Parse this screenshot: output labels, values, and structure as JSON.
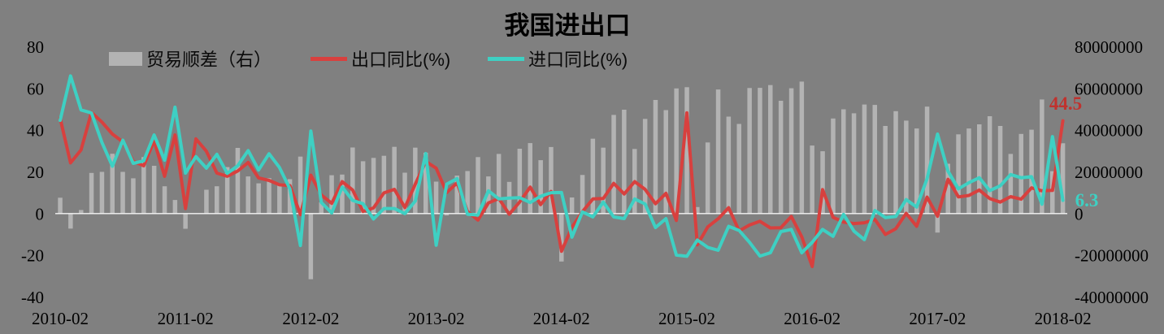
{
  "title": "我国进出口",
  "colors": {
    "background": "#808080",
    "bar": "#b3b3b3",
    "export_line": "#d8403e",
    "import_line": "#3ed0c3",
    "zero_line": "#f5f5f5",
    "text": "#000000"
  },
  "legend": {
    "items": [
      {
        "label": "贸易顺差（右）",
        "type": "bar",
        "color": "#b3b3b3"
      },
      {
        "label": "出口同比(%)",
        "type": "line",
        "color": "#d8403e"
      },
      {
        "label": "进口同比(%)",
        "type": "line",
        "color": "#3ed0c3"
      }
    ]
  },
  "axes": {
    "left_ticks": [
      "80",
      "60",
      "40",
      "20",
      "0",
      "-20",
      "-40"
    ],
    "left_tick_values": [
      80,
      60,
      40,
      20,
      0,
      -20,
      -40
    ],
    "right_ticks": [
      "80000000",
      "60000000",
      "40000000",
      "20000000",
      "0",
      "-20000000",
      "-40000000"
    ],
    "right_tick_values": [
      80000000,
      60000000,
      40000000,
      20000000,
      0,
      -20000000,
      -40000000
    ],
    "x_ticks": [
      "2010-02",
      "2011-02",
      "2012-02",
      "2013-02",
      "2014-02",
      "2015-02",
      "2016-02",
      "2017-02",
      "2018-02"
    ]
  },
  "annotations": {
    "export_last": {
      "text": "44.5",
      "color": "#c0322e"
    },
    "import_last": {
      "text": "6.3",
      "color": "#3ed0c3"
    }
  },
  "chart_data": {
    "type": "combo",
    "title": "我国进出口",
    "grid": false,
    "legend_position": "top",
    "left_ylim": [
      -40,
      80
    ],
    "right_ylim": [
      -40000000,
      80000000
    ],
    "x": [
      "2010-02",
      "2010-03",
      "2010-04",
      "2010-05",
      "2010-06",
      "2010-07",
      "2010-08",
      "2010-09",
      "2010-10",
      "2010-11",
      "2010-12",
      "2011-01",
      "2011-02",
      "2011-03",
      "2011-04",
      "2011-05",
      "2011-06",
      "2011-07",
      "2011-08",
      "2011-09",
      "2011-10",
      "2011-11",
      "2011-12",
      "2012-01",
      "2012-02",
      "2012-03",
      "2012-04",
      "2012-05",
      "2012-06",
      "2012-07",
      "2012-08",
      "2012-09",
      "2012-10",
      "2012-11",
      "2012-12",
      "2013-01",
      "2013-02",
      "2013-03",
      "2013-04",
      "2013-05",
      "2013-06",
      "2013-07",
      "2013-08",
      "2013-09",
      "2013-10",
      "2013-11",
      "2013-12",
      "2014-01",
      "2014-02",
      "2014-03",
      "2014-04",
      "2014-05",
      "2014-06",
      "2014-07",
      "2014-08",
      "2014-09",
      "2014-10",
      "2014-11",
      "2014-12",
      "2015-01",
      "2015-02",
      "2015-03",
      "2015-04",
      "2015-05",
      "2015-06",
      "2015-07",
      "2015-08",
      "2015-09",
      "2015-10",
      "2015-11",
      "2015-12",
      "2016-01",
      "2016-02",
      "2016-03",
      "2016-04",
      "2016-05",
      "2016-06",
      "2016-07",
      "2016-08",
      "2016-09",
      "2016-10",
      "2016-11",
      "2016-12",
      "2017-01",
      "2017-02",
      "2017-03",
      "2017-04",
      "2017-05",
      "2017-06",
      "2017-07",
      "2017-08",
      "2017-09",
      "2017-10",
      "2017-11",
      "2017-12",
      "2018-01",
      "2018-02"
    ],
    "series": [
      {
        "name": "贸易顺差（右）",
        "type": "bar",
        "axis": "right",
        "color": "#b3b3b3",
        "values": [
          7600000,
          -7200000,
          1700000,
          19500000,
          20000000,
          28700000,
          20000000,
          16900000,
          27100000,
          22900000,
          13100000,
          6500000,
          -7300000,
          100000,
          11400000,
          13100000,
          22300000,
          31500000,
          17800000,
          14500000,
          17000000,
          14500000,
          16500000,
          27300000,
          -31500000,
          5400000,
          18400000,
          18700000,
          31700000,
          25100000,
          26700000,
          27700000,
          32000000,
          19600000,
          31600000,
          29200000,
          15300000,
          -900000,
          18200000,
          20400000,
          27100000,
          17800000,
          28600000,
          15200000,
          31100000,
          33800000,
          25600000,
          31900000,
          -23000000,
          7700000,
          18500000,
          35900000,
          31600000,
          47300000,
          49800000,
          31000000,
          45400000,
          54500000,
          49600000,
          60000000,
          60600000,
          3100000,
          34100000,
          59500000,
          46500000,
          43000000,
          60200000,
          60300000,
          61600000,
          54100000,
          60100000,
          63300000,
          32600000,
          29900000,
          45600000,
          50000000,
          48100000,
          52300000,
          52100000,
          42000000,
          49100000,
          44600000,
          40800000,
          51300000,
          -9100000,
          23900000,
          38000000,
          40800000,
          42800000,
          46700000,
          42000000,
          28600000,
          38200000,
          40200000,
          54700000,
          20300000,
          33700000
        ]
      },
      {
        "name": "出口同比(%)",
        "type": "line",
        "axis": "left",
        "color": "#d8403e",
        "values": [
          45.7,
          24.3,
          30.5,
          48.5,
          43.9,
          38.1,
          34.4,
          25.1,
          22.9,
          34.9,
          17.9,
          37.7,
          2.4,
          35.8,
          29.9,
          19.4,
          17.9,
          20.4,
          24.5,
          17.1,
          15.9,
          13.8,
          13.4,
          -0.5,
          18.4,
          8.9,
          4.9,
          15.3,
          11.3,
          1.0,
          2.7,
          9.9,
          11.6,
          2.9,
          14.1,
          25.0,
          21.8,
          10.0,
          14.7,
          1.0,
          -3.1,
          5.1,
          7.2,
          -0.3,
          5.6,
          12.7,
          4.3,
          10.6,
          -18.1,
          -6.6,
          0.9,
          7.0,
          7.2,
          14.5,
          9.4,
          15.3,
          11.6,
          4.7,
          9.7,
          -3.3,
          48.3,
          -15.0,
          -6.4,
          -2.5,
          2.8,
          -8.3,
          -5.5,
          -3.7,
          -6.9,
          -6.8,
          -1.4,
          -11.2,
          -25.4,
          11.5,
          -1.8,
          -4.1,
          -4.8,
          -4.4,
          -2.8,
          -10.0,
          -7.3,
          0.1,
          -6.1,
          7.9,
          -1.3,
          16.4,
          8.0,
          8.7,
          11.3,
          7.2,
          5.5,
          8.1,
          6.9,
          12.3,
          10.9,
          11.1,
          44.5
        ]
      },
      {
        "name": "进口同比(%)",
        "type": "line",
        "axis": "left",
        "color": "#3ed0c3",
        "values": [
          44.7,
          66.0,
          49.7,
          48.3,
          34.1,
          22.7,
          35.2,
          24.1,
          25.3,
          37.7,
          25.6,
          51.0,
          19.4,
          27.3,
          21.8,
          28.4,
          19.3,
          22.9,
          30.2,
          20.9,
          28.7,
          22.1,
          11.8,
          -15.3,
          39.6,
          5.3,
          0.3,
          12.7,
          6.3,
          4.7,
          -2.6,
          2.4,
          2.4,
          0.0,
          6.0,
          28.8,
          -15.2,
          14.1,
          16.8,
          -0.3,
          -0.7,
          10.9,
          7.0,
          7.4,
          7.6,
          5.3,
          8.3,
          10.0,
          10.1,
          -11.3,
          0.8,
          -1.6,
          5.5,
          -1.6,
          -2.4,
          7.0,
          4.6,
          -6.7,
          -2.4,
          -19.9,
          -20.5,
          -12.7,
          -16.2,
          -17.6,
          -6.1,
          -8.1,
          -13.8,
          -20.4,
          -18.8,
          -8.7,
          -7.6,
          -18.8,
          -13.8,
          -7.6,
          -10.9,
          -0.4,
          -8.4,
          -12.5,
          1.5,
          -1.9,
          -1.4,
          6.7,
          3.1,
          16.7,
          38.1,
          20.3,
          11.9,
          14.8,
          17.2,
          11.0,
          13.3,
          18.7,
          17.2,
          17.7,
          4.5,
          36.9,
          6.3
        ]
      }
    ]
  }
}
